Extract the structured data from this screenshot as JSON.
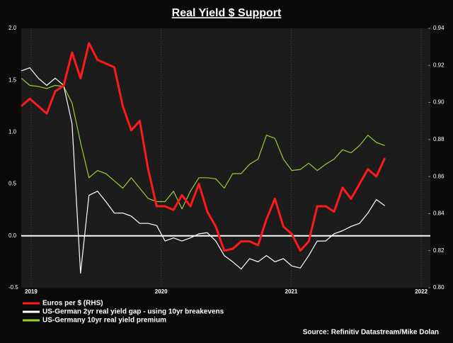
{
  "chart_data": {
    "type": "line",
    "title": "Real Yield $ Support",
    "source": "Source: Refinitiv Datastream/Mike Dolan",
    "x": [
      2018.925,
      2018.99,
      2019.055,
      2019.12,
      2019.185,
      2019.25,
      2019.315,
      2019.38,
      2019.445,
      2019.51,
      2019.575,
      2019.64,
      2019.705,
      2019.77,
      2019.835,
      2019.9,
      2019.965,
      2020.03,
      2020.095,
      2020.16,
      2020.225,
      2020.29,
      2020.355,
      2020.42,
      2020.485,
      2020.55,
      2020.615,
      2020.68,
      2020.745,
      2020.81,
      2020.875,
      2020.94,
      2021.005,
      2021.07,
      2021.135,
      2021.2,
      2021.265,
      2021.33,
      2021.395,
      2021.46,
      2021.525,
      2021.59,
      2021.655,
      2021.72
    ],
    "series": [
      {
        "name": "Euros per $ (RHS)",
        "color": "#ff1a1a",
        "axis": "y2",
        "values": [
          0.898,
          0.902,
          0.898,
          0.894,
          0.906,
          0.909,
          0.927,
          0.913,
          0.932,
          0.923,
          0.921,
          0.919,
          0.898,
          0.885,
          0.89,
          0.864,
          0.844,
          0.844,
          0.842,
          0.85,
          0.844,
          0.856,
          0.841,
          0.833,
          0.82,
          0.821,
          0.825,
          0.825,
          0.823,
          0.837,
          0.848,
          0.833,
          0.829,
          0.82,
          0.825,
          0.844,
          0.844,
          0.841,
          0.854,
          0.848,
          0.856,
          0.864,
          0.86,
          0.87
        ]
      },
      {
        "name": "US-German 2yr real yield gap - using 10yr breakevens",
        "color": "#ffffff",
        "values": [
          1.59,
          1.62,
          1.52,
          1.45,
          1.52,
          1.45,
          1.08,
          -0.36,
          0.39,
          0.43,
          0.33,
          0.22,
          0.22,
          0.19,
          0.12,
          0.12,
          0.1,
          -0.05,
          -0.02,
          -0.05,
          -0.02,
          0.02,
          0.03,
          -0.05,
          -0.19,
          -0.25,
          -0.32,
          -0.22,
          -0.25,
          -0.19,
          -0.25,
          -0.22,
          -0.29,
          -0.31,
          -0.19,
          -0.05,
          -0.05,
          0.02,
          0.05,
          0.09,
          0.12,
          0.22,
          0.35,
          0.29
        ]
      },
      {
        "name": "US-Germany 10yr real yield premium",
        "color": "#9acd32",
        "values": [
          1.52,
          1.45,
          1.44,
          1.42,
          1.45,
          1.44,
          1.28,
          0.9,
          0.56,
          0.63,
          0.6,
          0.53,
          0.46,
          0.56,
          0.46,
          0.36,
          0.33,
          0.33,
          0.43,
          0.26,
          0.43,
          0.56,
          0.56,
          0.55,
          0.46,
          0.6,
          0.6,
          0.69,
          0.74,
          0.97,
          0.94,
          0.74,
          0.63,
          0.64,
          0.7,
          0.63,
          0.69,
          0.74,
          0.83,
          0.8,
          0.87,
          0.97,
          0.9,
          0.87
        ]
      }
    ],
    "xlim": [
      2018.924,
      2022.07
    ],
    "xticks": [
      2019,
      2020,
      2021,
      2022
    ],
    "ylim": [
      -0.5,
      2.0
    ],
    "yticks": [
      -0.5,
      {
        "value": 0,
        "label": "0.0"
      },
      0.5,
      {
        "value": 1,
        "label": "1.0"
      },
      1.5,
      {
        "value": 2,
        "label": "2.0"
      }
    ],
    "y2lim": [
      0.8,
      0.94
    ],
    "y2ticks": [
      {
        "value": 0.8,
        "label": "0.80"
      },
      0.82,
      0.84,
      0.86,
      0.88,
      {
        "value": 0.9,
        "label": "0.90"
      },
      0.92,
      0.94
    ]
  }
}
